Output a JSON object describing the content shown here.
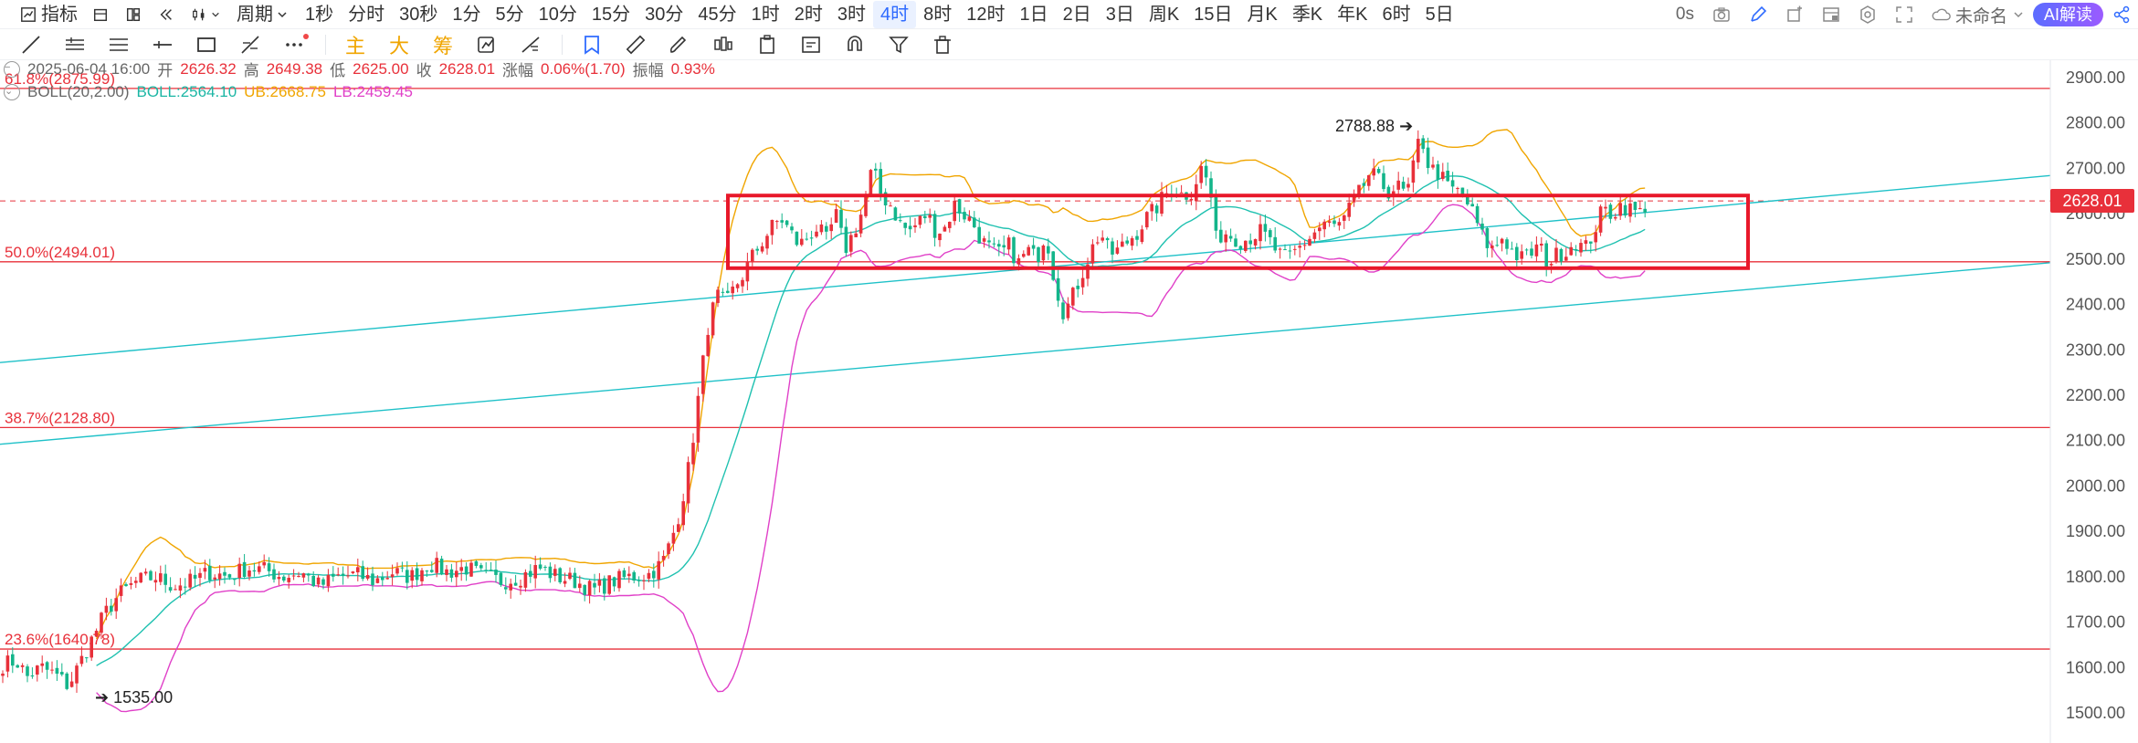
{
  "toolbar": {
    "indicators_label": "指标",
    "period_label": "周期",
    "timeframes": [
      "1秒",
      "分时",
      "30秒",
      "1分",
      "5分",
      "10分",
      "15分",
      "30分",
      "45分",
      "1时",
      "2时",
      "3时",
      "4时",
      "8时",
      "12时",
      "1日",
      "2日",
      "3日",
      "周K",
      "15日",
      "月K",
      "季K",
      "年K",
      "6时",
      "5日"
    ],
    "active_timeframe": "4时",
    "timer": "0s",
    "layout_name": "未命名",
    "ai_button": "AI解读"
  },
  "draw_toolbar": {
    "text_tools": [
      "主",
      "大",
      "筹"
    ]
  },
  "info": {
    "date": "2025-06-04 16:00",
    "open_label": "开",
    "open": "2626.32",
    "high_label": "高",
    "high": "2649.38",
    "low_label": "低",
    "low": "2625.00",
    "close_label": "收",
    "close": "2628.01",
    "change_label": "涨幅",
    "change": "0.06%(1.70)",
    "amp_label": "振幅",
    "amp": "0.93%",
    "boll_name": "BOLL(20,2.00)",
    "boll": "BOLL:2564.10",
    "ub": "UB:2668.75",
    "lb": "LB:2459.45"
  },
  "chart_data": {
    "type": "candlestick",
    "timeframe": "4时",
    "ylim": [
      1480,
      2920
    ],
    "y_ticks": [
      "2900.00",
      "2800.00",
      "2700.00",
      "2600.00",
      "2500.00",
      "2400.00",
      "2300.00",
      "2200.00",
      "2100.00",
      "2000.00",
      "1900.00",
      "1800.00",
      "1700.00",
      "1600.00",
      "1500.00"
    ],
    "last_price": "2628.01",
    "high_marker": "2788.88",
    "low_marker": "1535.00",
    "fib_levels": [
      {
        "label": "61.8%(2875.99)",
        "value": 2875.99
      },
      {
        "label": "50.0%(2494.01)",
        "value": 2494.01
      },
      {
        "label": "38.7%(2128.80)",
        "value": 2128.8
      },
      {
        "label": "23.6%(1640.78)",
        "value": 1640.78
      }
    ],
    "bollinger": {
      "period": 20,
      "std": 2.0,
      "mid": 2564.1,
      "upper": 2668.75,
      "lower": 2459.45
    },
    "price_path": [
      [
        0,
        1605
      ],
      [
        18,
        1615
      ],
      [
        30,
        1580
      ],
      [
        45,
        1600
      ],
      [
        60,
        1585
      ],
      [
        75,
        1560
      ],
      [
        85,
        1600
      ],
      [
        95,
        1640
      ],
      [
        105,
        1680
      ],
      [
        115,
        1720
      ],
      [
        130,
        1760
      ],
      [
        150,
        1790
      ],
      [
        170,
        1800
      ],
      [
        190,
        1780
      ],
      [
        210,
        1790
      ],
      [
        230,
        1810
      ],
      [
        250,
        1800
      ],
      [
        270,
        1820
      ],
      [
        290,
        1815
      ],
      [
        310,
        1800
      ],
      [
        330,
        1810
      ],
      [
        350,
        1780
      ],
      [
        370,
        1800
      ],
      [
        390,
        1805
      ],
      [
        410,
        1790
      ],
      [
        430,
        1810
      ],
      [
        450,
        1800
      ],
      [
        470,
        1830
      ],
      [
        490,
        1810
      ],
      [
        510,
        1820
      ],
      [
        530,
        1800
      ],
      [
        550,
        1790
      ],
      [
        570,
        1800
      ],
      [
        590,
        1820
      ],
      [
        610,
        1800
      ],
      [
        630,
        1790
      ],
      [
        650,
        1770
      ],
      [
        670,
        1790
      ],
      [
        690,
        1800
      ],
      [
        710,
        1805
      ],
      [
        725,
        1830
      ],
      [
        735,
        1880
      ],
      [
        745,
        1950
      ],
      [
        755,
        2050
      ],
      [
        765,
        2200
      ],
      [
        775,
        2350
      ],
      [
        785,
        2420
      ],
      [
        795,
        2400
      ],
      [
        805,
        2440
      ],
      [
        815,
        2470
      ],
      [
        825,
        2510
      ],
      [
        835,
        2540
      ],
      [
        845,
        2570
      ],
      [
        855,
        2590
      ],
      [
        865,
        2560
      ],
      [
        875,
        2530
      ],
      [
        885,
        2550
      ],
      [
        895,
        2570
      ],
      [
        905,
        2540
      ],
      [
        915,
        2600
      ],
      [
        925,
        2520
      ],
      [
        935,
        2560
      ],
      [
        945,
        2610
      ],
      [
        955,
        2700
      ],
      [
        965,
        2640
      ],
      [
        975,
        2620
      ],
      [
        985,
        2580
      ],
      [
        995,
        2560
      ],
      [
        1005,
        2580
      ],
      [
        1015,
        2600
      ],
      [
        1025,
        2560
      ],
      [
        1035,
        2570
      ],
      [
        1045,
        2620
      ],
      [
        1055,
        2600
      ],
      [
        1065,
        2580
      ],
      [
        1075,
        2540
      ],
      [
        1085,
        2520
      ],
      [
        1095,
        2510
      ],
      [
        1105,
        2530
      ],
      [
        1115,
        2490
      ],
      [
        1125,
        2520
      ],
      [
        1135,
        2500
      ],
      [
        1145,
        2560
      ],
      [
        1155,
        2450
      ],
      [
        1165,
        2380
      ],
      [
        1175,
        2420
      ],
      [
        1185,
        2470
      ],
      [
        1195,
        2520
      ],
      [
        1205,
        2560
      ],
      [
        1215,
        2510
      ],
      [
        1225,
        2520
      ],
      [
        1235,
        2540
      ],
      [
        1245,
        2560
      ],
      [
        1255,
        2590
      ],
      [
        1265,
        2610
      ],
      [
        1275,
        2640
      ],
      [
        1285,
        2660
      ],
      [
        1295,
        2640
      ],
      [
        1305,
        2650
      ],
      [
        1315,
        2700
      ],
      [
        1325,
        2660
      ],
      [
        1330,
        2540
      ],
      [
        1340,
        2560
      ],
      [
        1350,
        2550
      ],
      [
        1360,
        2540
      ],
      [
        1370,
        2550
      ],
      [
        1380,
        2560
      ],
      [
        1390,
        2540
      ],
      [
        1400,
        2510
      ],
      [
        1410,
        2500
      ],
      [
        1420,
        2520
      ],
      [
        1430,
        2540
      ],
      [
        1440,
        2560
      ],
      [
        1450,
        2580
      ],
      [
        1460,
        2570
      ],
      [
        1470,
        2580
      ],
      [
        1480,
        2620
      ],
      [
        1490,
        2650
      ],
      [
        1500,
        2690
      ],
      [
        1510,
        2670
      ],
      [
        1520,
        2650
      ],
      [
        1530,
        2660
      ],
      [
        1540,
        2640
      ],
      [
        1550,
        2720
      ],
      [
        1555,
        2780
      ],
      [
        1565,
        2700
      ],
      [
        1575,
        2690
      ],
      [
        1585,
        2660
      ],
      [
        1595,
        2650
      ],
      [
        1605,
        2630
      ],
      [
        1615,
        2590
      ],
      [
        1625,
        2540
      ],
      [
        1635,
        2520
      ],
      [
        1645,
        2550
      ],
      [
        1655,
        2520
      ],
      [
        1665,
        2500
      ],
      [
        1675,
        2510
      ],
      [
        1685,
        2530
      ],
      [
        1695,
        2490
      ],
      [
        1705,
        2510
      ],
      [
        1715,
        2520
      ],
      [
        1725,
        2540
      ],
      [
        1735,
        2520
      ],
      [
        1745,
        2560
      ],
      [
        1755,
        2610
      ],
      [
        1765,
        2600
      ],
      [
        1775,
        2620
      ],
      [
        1785,
        2610
      ],
      [
        1795,
        2600
      ],
      [
        1805,
        2628
      ]
    ]
  }
}
